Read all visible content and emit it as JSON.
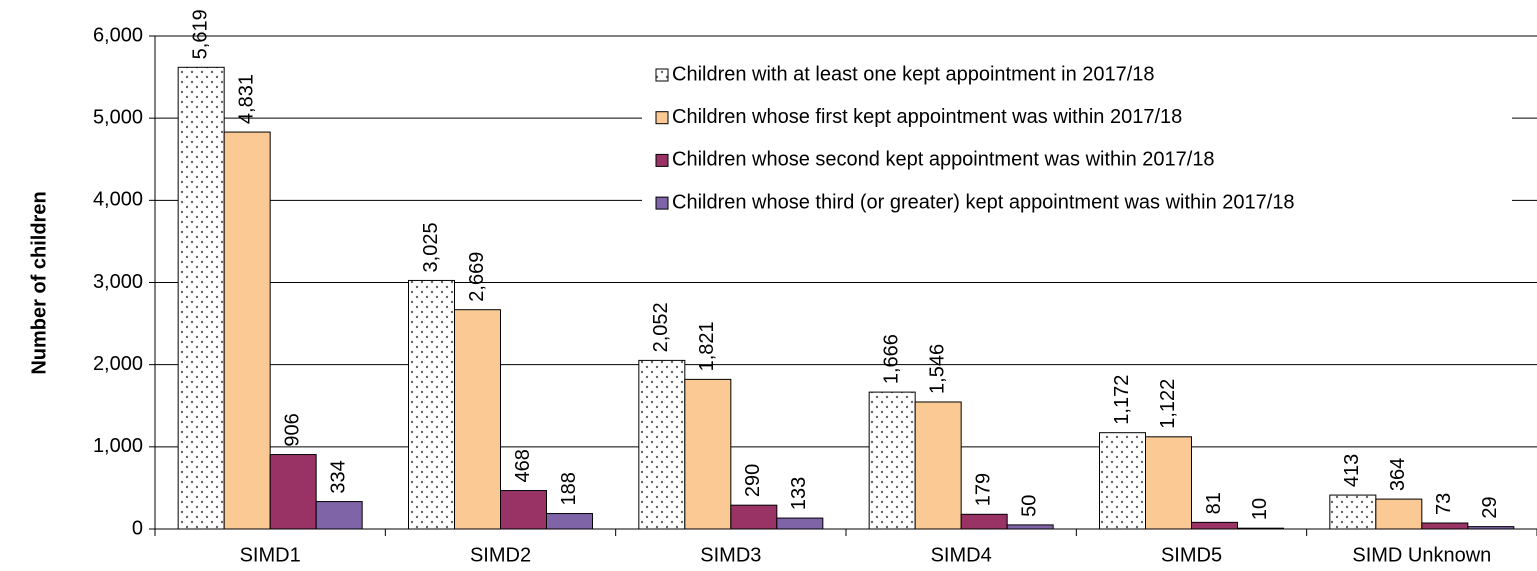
{
  "chart_data": {
    "type": "bar",
    "y_label": "Number of children",
    "categories": [
      "SIMD1",
      "SIMD2",
      "SIMD3",
      "SIMD4",
      "SIMD5",
      "SIMD Unknown"
    ],
    "series": [
      {
        "name": "Children with at least one kept appointment in 2017/18",
        "color": "#ffffff",
        "pattern": "dots",
        "values": [
          5619,
          3025,
          2052,
          1666,
          1172,
          413
        ],
        "value_labels": [
          "5,619",
          "3,025",
          "2,052",
          "1,666",
          "1,172",
          "413"
        ]
      },
      {
        "name": "Children whose first kept appointment was within 2017/18",
        "color": "#fbc994",
        "values": [
          4831,
          2669,
          1821,
          1546,
          1122,
          364
        ],
        "value_labels": [
          "4,831",
          "2,669",
          "1,821",
          "1,546",
          "1,122",
          "364"
        ]
      },
      {
        "name": "Children whose second kept appointment was within 2017/18",
        "color": "#993366",
        "values": [
          906,
          468,
          290,
          179,
          81,
          73
        ],
        "value_labels": [
          "906",
          "468",
          "290",
          "179",
          "81",
          "73"
        ]
      },
      {
        "name": "Children whose third (or greater) kept appointment was within 2017/18",
        "color": "#8064a8",
        "values": [
          334,
          188,
          133,
          50,
          10,
          29
        ],
        "value_labels": [
          "334",
          "188",
          "133",
          "50",
          "10",
          "29"
        ]
      }
    ],
    "ylim": [
      0,
      6000
    ],
    "yticks": [
      0,
      {
        "value": 1000,
        "label": "1,000"
      },
      {
        "value": 2000,
        "label": "2,000"
      },
      {
        "value": 3000,
        "label": "3,000"
      },
      {
        "value": 4000,
        "label": "4,000"
      },
      {
        "value": 5000,
        "label": "5,000"
      },
      {
        "value": 6000,
        "label": "6,000"
      }
    ],
    "grid": true,
    "legend": "top-right"
  }
}
